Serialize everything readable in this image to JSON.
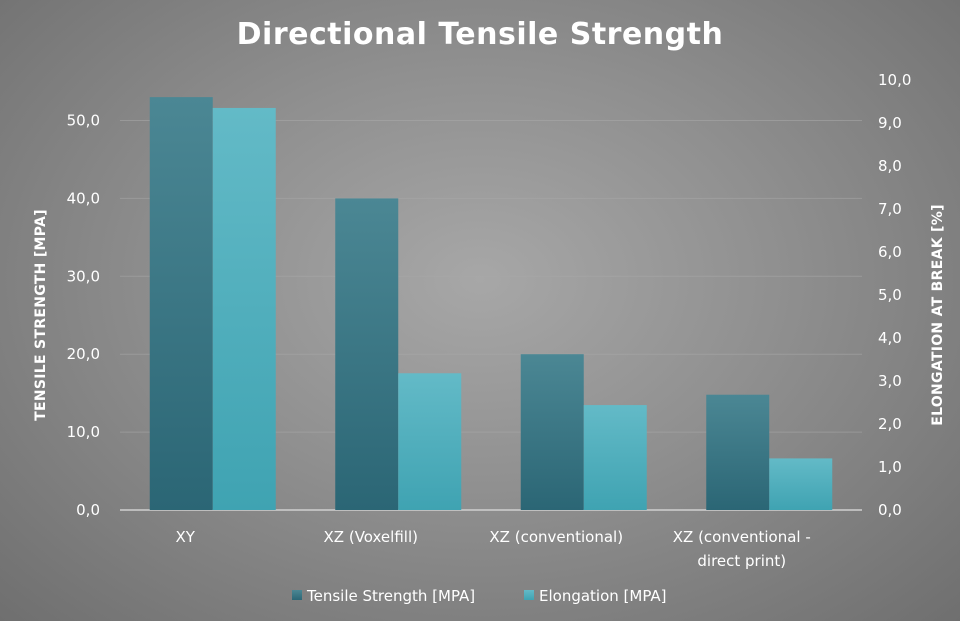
{
  "colors": {
    "tensile": "#2b6675",
    "tensile_top": "#4b8794",
    "elongation": "#3fa3b2",
    "elongation_top": "#63bac7",
    "text": "#ffffff",
    "grid": "#a9a9a9"
  },
  "chart_data": {
    "type": "bar",
    "title": "Directional Tensile Strength",
    "categories": [
      [
        "XY"
      ],
      [
        "XZ (Voxelfill)"
      ],
      [
        "XZ (conventional)"
      ],
      [
        "XZ (conventional -",
        "direct print)"
      ]
    ],
    "series": [
      {
        "name": "Tensile Strength [MPA]",
        "axis": "left",
        "values": [
          53.0,
          40.0,
          20.0,
          14.8
        ]
      },
      {
        "name": "Elongation [MPA]",
        "axis": "right",
        "values": [
          9.35,
          3.18,
          2.44,
          1.2
        ]
      }
    ],
    "ylabel": "TENSILE STRENGTH [MPA]",
    "ylim": [
      0,
      55
    ],
    "yticks": [
      "0,0",
      "10,0",
      "20,0",
      "30,0",
      "40,0",
      "50,0"
    ],
    "y2label": "ELONGATION AT BREAK [%]",
    "y2lim": [
      0,
      10
    ],
    "y2ticks": [
      "0,0",
      "1,0",
      "2,0",
      "3,0",
      "4,0",
      "5,0",
      "6,0",
      "7,0",
      "8,0",
      "9,0",
      "10,0"
    ],
    "grid": true,
    "legend": "bottom"
  }
}
